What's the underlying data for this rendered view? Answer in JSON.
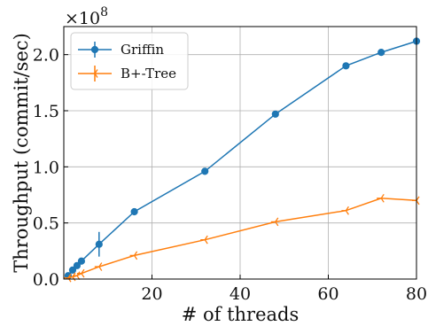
{
  "chart_data": {
    "type": "line",
    "xlabel": "# of threads",
    "ylabel": "Throughput (commit/sec)",
    "y_multiplier_label": "×10",
    "y_multiplier_exponent": "8",
    "xlim": [
      0,
      80
    ],
    "ylim": [
      0,
      2.25
    ],
    "x_ticks": [
      20,
      40,
      60,
      80
    ],
    "x_tick_labels": [
      "20",
      "40",
      "60",
      "80"
    ],
    "y_ticks": [
      0,
      0.5,
      1.0,
      1.5,
      2.0
    ],
    "y_tick_labels": [
      "0.0",
      "0.5",
      "1.0",
      "1.5",
      "2.0"
    ],
    "grid": true,
    "legend_position": "top-left",
    "series": [
      {
        "name": "Griffin",
        "color": "#1f77b4",
        "marker": "circle",
        "x": [
          1,
          2,
          3,
          4,
          8,
          16,
          32,
          48,
          64,
          72,
          80
        ],
        "y": [
          0.03,
          0.08,
          0.12,
          0.16,
          0.31,
          0.6,
          0.96,
          1.47,
          1.9,
          2.02,
          2.12
        ],
        "error": [
          0,
          0,
          0,
          0,
          0.11,
          0,
          0,
          0,
          0,
          0,
          0
        ]
      },
      {
        "name": "B+-Tree",
        "color": "#ff7f0e",
        "marker": "tri-left",
        "x": [
          1,
          2,
          3,
          4,
          8,
          16,
          32,
          48,
          64,
          72,
          80
        ],
        "y": [
          0.01,
          0.02,
          0.03,
          0.05,
          0.11,
          0.21,
          0.35,
          0.51,
          0.61,
          0.72,
          0.7
        ],
        "error": [
          0,
          0,
          0,
          0,
          0,
          0,
          0,
          0,
          0,
          0,
          0
        ]
      }
    ]
  }
}
